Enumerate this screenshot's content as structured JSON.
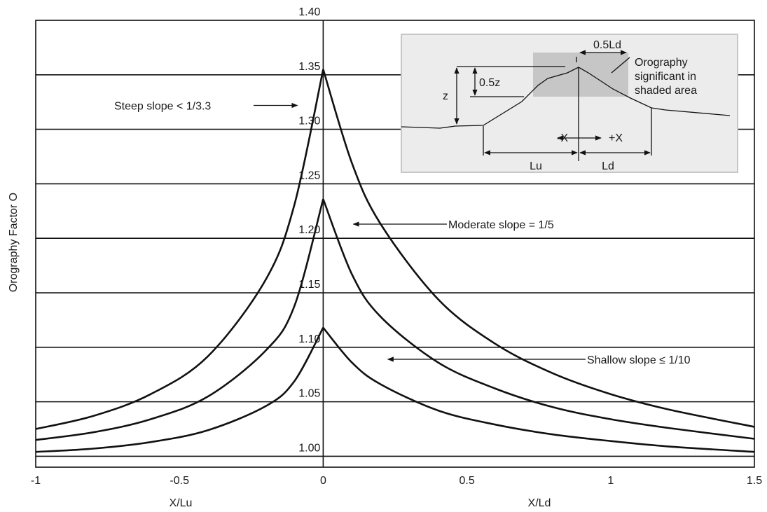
{
  "chart_data": {
    "type": "line",
    "ylabel": "Orography Factor O",
    "xlabel_left": "X/Lu",
    "xlabel_right": "X/Ld",
    "xlim": [
      -1,
      1.5
    ],
    "ylim": [
      0.99,
      1.4
    ],
    "x_ticks": [
      "-1",
      "-0.5",
      "0",
      "0.5",
      "1",
      "1.5"
    ],
    "x_tick_values": [
      -1,
      -0.5,
      0,
      0.5,
      1,
      1.5
    ],
    "y_ticks": [
      "1.00",
      "1.05",
      "1.10",
      "1.15",
      "1.20",
      "1.25",
      "1.30",
      "1.35",
      "1.40"
    ],
    "y_tick_values": [
      1.0,
      1.05,
      1.1,
      1.15,
      1.2,
      1.25,
      1.3,
      1.35,
      1.4
    ],
    "grid": "horizontal",
    "series": [
      {
        "name": "Steep slope < 1/3.3",
        "x": [
          -1,
          -0.8,
          -0.6,
          -0.4,
          -0.2,
          -0.1,
          0,
          0.1,
          0.2,
          0.4,
          0.6,
          0.8,
          1,
          1.2,
          1.5
        ],
        "y": [
          1.025,
          1.037,
          1.057,
          1.092,
          1.162,
          1.231,
          1.355,
          1.269,
          1.213,
          1.144,
          1.103,
          1.076,
          1.057,
          1.043,
          1.027
        ]
      },
      {
        "name": "Moderate slope = 1/5",
        "x": [
          -1,
          -0.8,
          -0.6,
          -0.4,
          -0.2,
          -0.1,
          0,
          0.1,
          0.2,
          0.4,
          0.6,
          0.8,
          1,
          1.2,
          1.5
        ],
        "y": [
          1.015,
          1.022,
          1.034,
          1.055,
          1.097,
          1.138,
          1.236,
          1.167,
          1.128,
          1.086,
          1.062,
          1.045,
          1.034,
          1.026,
          1.016
        ]
      },
      {
        "name": "Shallow slope ≤ 1/10",
        "x": [
          -1,
          -0.8,
          -0.6,
          -0.4,
          -0.2,
          -0.1,
          0,
          0.1,
          0.2,
          0.4,
          0.6,
          0.8,
          1,
          1.2,
          1.5
        ],
        "y": [
          1.004,
          1.007,
          1.013,
          1.024,
          1.046,
          1.069,
          1.118,
          1.086,
          1.066,
          1.042,
          1.029,
          1.02,
          1.014,
          1.009,
          1.004
        ]
      }
    ],
    "annotations": [
      {
        "text": "Steep slope < 1/3.3",
        "x": -0.08,
        "y": 1.32
      },
      {
        "text": "Moderate slope = 1/5",
        "x": 0.1,
        "y": 1.213
      },
      {
        "text": "Shallow slope ≤ 1/10",
        "x": 0.22,
        "y": 1.089
      }
    ],
    "inset": {
      "labels": {
        "half_ld": "0.5Ld",
        "half_z": "0.5z",
        "z": "z",
        "minus_x": "-X",
        "plus_x": "+X",
        "lu": "Lu",
        "ld": "Ld",
        "shaded_note": [
          "Orography",
          "significant in",
          "shaded area"
        ]
      }
    }
  }
}
